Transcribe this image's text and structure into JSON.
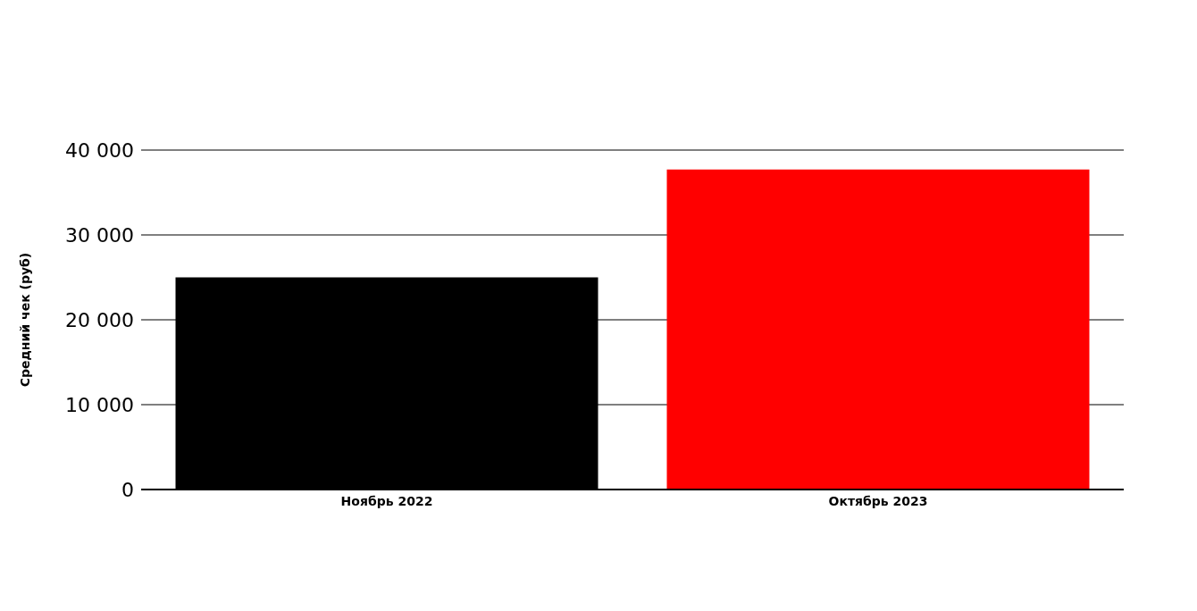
{
  "chart_data": {
    "type": "bar",
    "ylabel": "Средний чек (руб)",
    "categories": [
      "Ноябрь 2022",
      "Октябрь 2023"
    ],
    "values": [
      25000,
      37700
    ],
    "colors": [
      "#000000",
      "#ff0000"
    ],
    "ylim": [
      0,
      40000
    ],
    "yticks": [
      0,
      {
        "value": 10000,
        "label": "10 000"
      },
      {
        "value": 20000,
        "label": "20 000"
      },
      {
        "value": 30000,
        "label": "30 000"
      },
      {
        "value": 40000,
        "label": "40 000"
      }
    ],
    "grid": "y",
    "legend": false
  }
}
